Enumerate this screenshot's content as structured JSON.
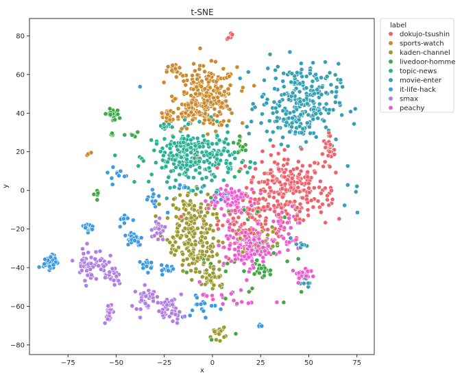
{
  "chart_data": {
    "type": "scatter",
    "title": "t-SNE",
    "xlabel": "x",
    "ylabel": "y",
    "xlim": [
      -95,
      84
    ],
    "ylim": [
      -85,
      89
    ],
    "xticks": [
      -75,
      -50,
      -25,
      0,
      25,
      50,
      75
    ],
    "yticks": [
      -80,
      -60,
      -40,
      -20,
      0,
      20,
      40,
      60,
      80
    ],
    "grid": false,
    "legend": {
      "title": "label",
      "placement": "outside-top-right"
    },
    "series": [
      {
        "name": "dokujo-tsushin",
        "color": "#f0616a",
        "clusters": [
          {
            "cx": 38,
            "cy": 2,
            "rx": 17,
            "ry": 14,
            "n": 210
          },
          {
            "cx": 22,
            "cy": -15,
            "rx": 22,
            "ry": 10,
            "n": 90
          },
          {
            "cx": 60,
            "cy": 20,
            "rx": 3,
            "ry": 7,
            "n": 25
          },
          {
            "cx": 10,
            "cy": 80,
            "rx": 2,
            "ry": 1.5,
            "n": 8
          },
          {
            "cx": 58,
            "cy": -5,
            "rx": 6,
            "ry": 10,
            "n": 12
          }
        ]
      },
      {
        "name": "sports-watch",
        "color": "#cc8a2e",
        "clusters": [
          {
            "cx": -3,
            "cy": 48,
            "rx": 13,
            "ry": 13,
            "n": 240
          },
          {
            "cx": -20,
            "cy": 62,
            "rx": 3,
            "ry": 3,
            "n": 20
          },
          {
            "cx": -23,
            "cy": 38,
            "rx": 5,
            "ry": 4,
            "n": 25
          },
          {
            "cx": -12,
            "cy": 42,
            "rx": 4,
            "ry": 4,
            "n": 25
          },
          {
            "cx": -64,
            "cy": 19,
            "rx": 1.5,
            "ry": 1,
            "n": 3
          }
        ]
      },
      {
        "name": "kaden-channel",
        "color": "#9d9a2f",
        "clusters": [
          {
            "cx": -12,
            "cy": -15,
            "rx": 10,
            "ry": 12,
            "n": 120
          },
          {
            "cx": -8,
            "cy": -33,
            "rx": 10,
            "ry": 10,
            "n": 110
          },
          {
            "cx": 0,
            "cy": -46,
            "rx": 6,
            "ry": 5,
            "n": 30
          },
          {
            "cx": 3,
            "cy": -74,
            "rx": 3,
            "ry": 2.5,
            "n": 15
          },
          {
            "cx": 25,
            "cy": -25,
            "rx": 10,
            "ry": 6,
            "n": 20
          }
        ]
      },
      {
        "name": "livedoor-homme",
        "color": "#3ea945",
        "clusters": [
          {
            "cx": -52,
            "cy": 39,
            "rx": 3,
            "ry": 2.5,
            "n": 20
          },
          {
            "cx": -52,
            "cy": 29,
            "rx": 1.5,
            "ry": 1,
            "n": 5
          },
          {
            "cx": -42,
            "cy": 28,
            "rx": 2,
            "ry": 3,
            "n": 6
          },
          {
            "cx": -60,
            "cy": -2,
            "rx": 2,
            "ry": 2,
            "n": 6
          },
          {
            "cx": 15,
            "cy": 25,
            "rx": 4,
            "ry": 8,
            "n": 15
          },
          {
            "cx": 26,
            "cy": -42,
            "rx": 4,
            "ry": 3,
            "n": 12
          },
          {
            "cx": 20,
            "cy": -35,
            "rx": 25,
            "ry": 25,
            "n": 45
          }
        ]
      },
      {
        "name": "topic-news",
        "color": "#2ab094",
        "clusters": [
          {
            "cx": -10,
            "cy": 17,
            "rx": 18,
            "ry": 12,
            "n": 280
          },
          {
            "cx": -25,
            "cy": 33,
            "rx": 3,
            "ry": 2,
            "n": 10
          }
        ]
      },
      {
        "name": "movie-enter",
        "color": "#33a0b3",
        "clusters": [
          {
            "cx": 45,
            "cy": 45,
            "rx": 17,
            "ry": 17,
            "n": 260
          },
          {
            "cx": 50,
            "cy": -48,
            "rx": 3,
            "ry": 2,
            "n": 6
          },
          {
            "cx": 45,
            "cy": -28,
            "rx": 3,
            "ry": 3,
            "n": 8
          },
          {
            "cx": 72,
            "cy": 2,
            "rx": 4,
            "ry": 12,
            "n": 6
          }
        ]
      },
      {
        "name": "it-life-hack",
        "color": "#3c9ae3",
        "clusters": [
          {
            "cx": -84,
            "cy": -37,
            "rx": 3,
            "ry": 3,
            "n": 50
          },
          {
            "cx": -64,
            "cy": -19,
            "rx": 2,
            "ry": 2,
            "n": 22
          },
          {
            "cx": -41,
            "cy": -25,
            "rx": 4,
            "ry": 3,
            "n": 40
          },
          {
            "cx": -34,
            "cy": -38,
            "rx": 3,
            "ry": 3,
            "n": 15
          },
          {
            "cx": -23,
            "cy": -41,
            "rx": 3,
            "ry": 2,
            "n": 15
          },
          {
            "cx": -45,
            "cy": -15,
            "rx": 3,
            "ry": 3,
            "n": 10
          },
          {
            "cx": -30,
            "cy": -5,
            "rx": 4,
            "ry": 5,
            "n": 12
          },
          {
            "cx": -15,
            "cy": 2,
            "rx": 2,
            "ry": 1,
            "n": 6
          },
          {
            "cx": 5,
            "cy": -2,
            "rx": 5,
            "ry": 3,
            "n": 10
          },
          {
            "cx": -5,
            "cy": -60,
            "rx": 10,
            "ry": 6,
            "n": 18
          },
          {
            "cx": -50,
            "cy": 8,
            "rx": 5,
            "ry": 5,
            "n": 10
          },
          {
            "cx": 25,
            "cy": -70,
            "rx": 1.5,
            "ry": 1,
            "n": 5
          },
          {
            "cx": -37,
            "cy": 55,
            "rx": 1,
            "ry": 1,
            "n": 1
          }
        ]
      },
      {
        "name": "smax",
        "color": "#b27de5",
        "clusters": [
          {
            "cx": -63,
            "cy": -38,
            "rx": 7,
            "ry": 7,
            "n": 60
          },
          {
            "cx": -52,
            "cy": -45,
            "rx": 4,
            "ry": 5,
            "n": 20
          },
          {
            "cx": -54,
            "cy": -63,
            "rx": 2,
            "ry": 4,
            "n": 25
          },
          {
            "cx": -35,
            "cy": -55,
            "rx": 4,
            "ry": 6,
            "n": 30
          },
          {
            "cx": -22,
            "cy": -62,
            "rx": 6,
            "ry": 5,
            "n": 40
          },
          {
            "cx": -28,
            "cy": -20,
            "rx": 3,
            "ry": 6,
            "n": 20
          }
        ]
      },
      {
        "name": "peachy",
        "color": "#ef5bd0",
        "clusters": [
          {
            "cx": 18,
            "cy": -30,
            "rx": 10,
            "ry": 8,
            "n": 130
          },
          {
            "cx": 10,
            "cy": -5,
            "rx": 10,
            "ry": 8,
            "n": 80
          },
          {
            "cx": 47,
            "cy": -44,
            "rx": 5,
            "ry": 3,
            "n": 25
          },
          {
            "cx": 35,
            "cy": -20,
            "rx": 10,
            "ry": 10,
            "n": 40
          },
          {
            "cx": 12,
            "cy": -55,
            "rx": 15,
            "ry": 6,
            "n": 20
          }
        ]
      }
    ]
  }
}
